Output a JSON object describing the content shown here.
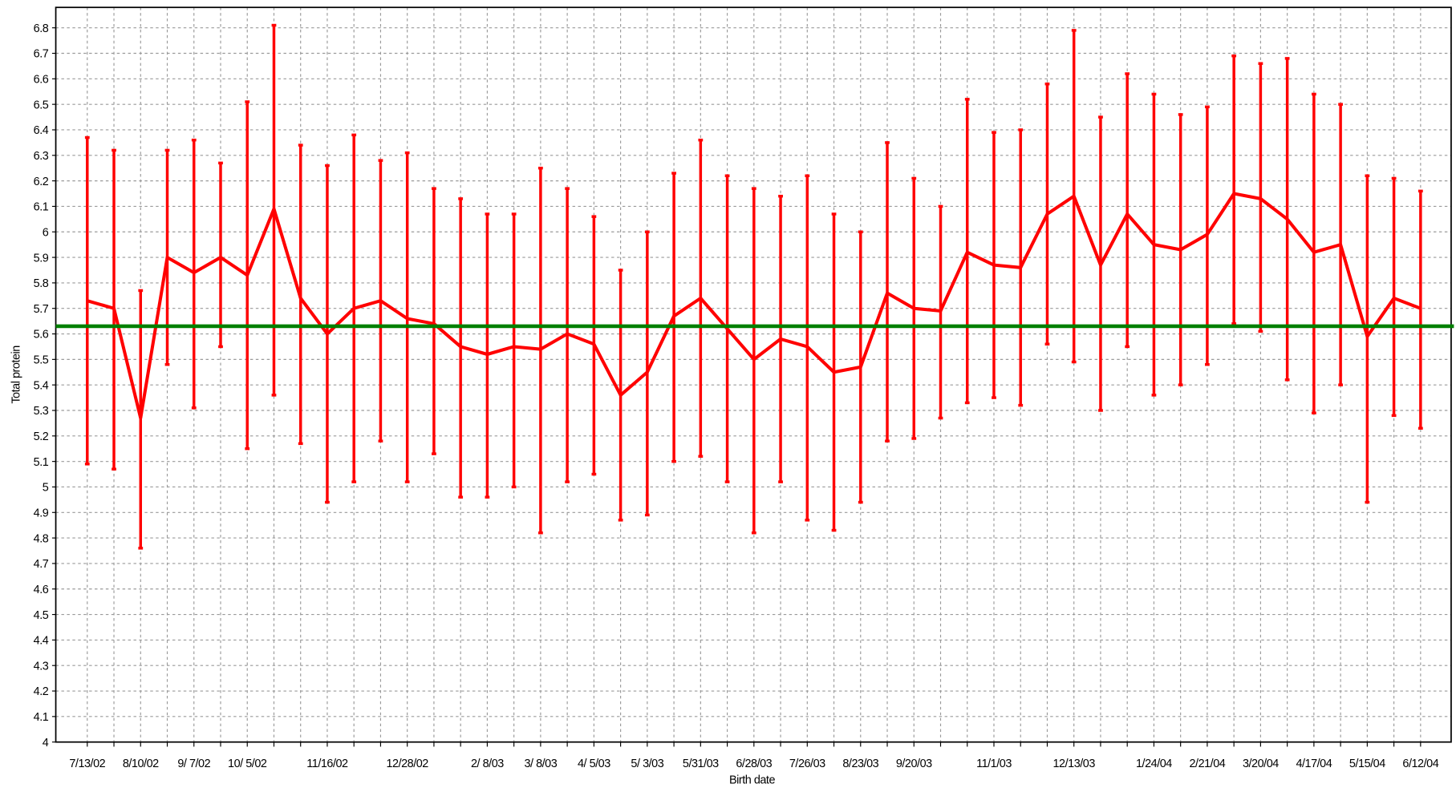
{
  "chart_data": {
    "type": "line",
    "x_label": "Birth date",
    "y_label": "Total protein",
    "categories": [
      "7/13/02",
      null,
      "8/10/02",
      null,
      "9/ 7/02",
      null,
      "10/ 5/02",
      null,
      null,
      "11/16/02",
      null,
      null,
      "12/28/02",
      null,
      null,
      "2/ 8/03",
      null,
      "3/ 8/03",
      null,
      "4/ 5/03",
      null,
      "5/ 3/03",
      null,
      "5/31/03",
      null,
      "6/28/03",
      null,
      "7/26/03",
      null,
      "8/23/03",
      null,
      "9/20/03",
      null,
      null,
      "11/1/03",
      null,
      null,
      "12/13/03",
      null,
      null,
      "1/24/04",
      null,
      "2/21/04",
      null,
      "3/20/04",
      null,
      "4/17/04",
      null,
      "5/15/04",
      null,
      "6/12/04"
    ],
    "series": [
      {
        "color": "#ff0000",
        "values": [
          5.73,
          5.7,
          5.27,
          5.9,
          5.84,
          5.9,
          5.83,
          6.09,
          5.74,
          5.6,
          5.7,
          5.73,
          5.66,
          5.64,
          5.55,
          5.52,
          5.55,
          5.54,
          5.6,
          5.56,
          5.36,
          5.45,
          5.67,
          5.74,
          5.62,
          5.5,
          5.58,
          5.55,
          5.45,
          5.47,
          5.76,
          5.7,
          5.69,
          5.92,
          5.87,
          5.86,
          6.07,
          6.14,
          5.87,
          6.07,
          5.95,
          5.93,
          5.99,
          6.15,
          6.13,
          6.05,
          5.92,
          5.95,
          5.59,
          5.74,
          5.7
        ],
        "upper": [
          6.37,
          6.32,
          5.77,
          6.32,
          6.36,
          6.27,
          6.51,
          6.81,
          6.34,
          6.26,
          6.38,
          6.28,
          6.31,
          6.17,
          6.13,
          6.07,
          6.07,
          6.25,
          6.17,
          6.06,
          5.85,
          6.0,
          6.23,
          6.36,
          6.22,
          6.17,
          6.14,
          6.22,
          6.07,
          6.0,
          6.35,
          6.21,
          6.1,
          6.52,
          6.39,
          6.4,
          6.58,
          6.79,
          6.45,
          6.62,
          6.54,
          6.46,
          6.49,
          6.69,
          6.66,
          6.68,
          6.54,
          6.5,
          6.22,
          6.21,
          6.16
        ],
        "lower": [
          5.09,
          5.07,
          4.76,
          5.48,
          5.31,
          5.55,
          5.15,
          5.36,
          5.17,
          4.94,
          5.02,
          5.18,
          5.02,
          5.13,
          4.96,
          4.96,
          5.0,
          4.82,
          5.02,
          5.05,
          4.87,
          4.89,
          5.1,
          5.12,
          5.02,
          4.82,
          5.02,
          4.87,
          4.83,
          4.94,
          5.18,
          5.19,
          5.27,
          5.33,
          5.35,
          5.32,
          5.56,
          5.49,
          5.3,
          5.55,
          5.36,
          5.4,
          5.48,
          5.64,
          5.61,
          5.42,
          5.29,
          5.4,
          4.94,
          5.28,
          5.23
        ]
      }
    ],
    "reference_line": {
      "value": 5.63,
      "color": "#008000"
    },
    "ylim": [
      4,
      6.88
    ],
    "yticks": [
      4,
      4.1,
      4.2,
      4.3,
      4.4,
      4.5,
      4.6,
      4.7,
      4.8,
      4.9,
      5,
      5.1,
      5.2,
      5.3,
      5.4,
      5.5,
      5.6,
      5.7,
      5.8,
      5.9,
      6,
      6.1,
      6.2,
      6.3,
      6.4,
      6.5,
      6.6,
      6.7,
      6.8
    ],
    "grid": true
  }
}
